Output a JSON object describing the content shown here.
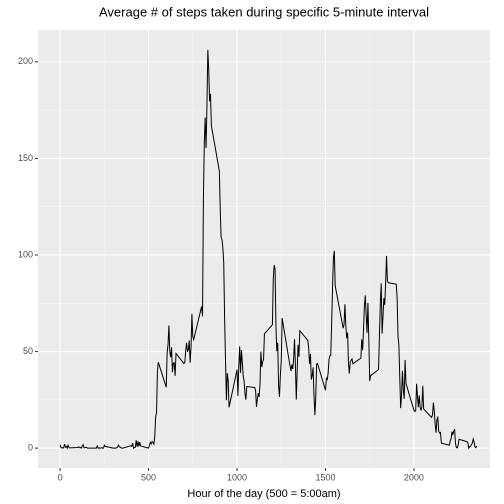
{
  "chart_data": {
    "type": "line",
    "title": "Average # of steps taken during specific 5-minute interval",
    "x_label": "Hour of the day (500 = 5:00am)",
    "x": [
      0,
      5,
      10,
      15,
      20,
      25,
      30,
      35,
      40,
      45,
      50,
      55,
      100,
      105,
      110,
      115,
      120,
      125,
      130,
      135,
      140,
      145,
      150,
      155,
      200,
      205,
      210,
      215,
      220,
      225,
      230,
      235,
      240,
      245,
      250,
      255,
      300,
      305,
      310,
      315,
      320,
      325,
      330,
      335,
      340,
      345,
      350,
      355,
      400,
      405,
      410,
      415,
      420,
      425,
      430,
      435,
      440,
      445,
      450,
      455,
      500,
      505,
      510,
      515,
      520,
      525,
      530,
      535,
      540,
      545,
      550,
      555,
      600,
      605,
      610,
      615,
      620,
      625,
      630,
      635,
      640,
      645,
      650,
      655,
      700,
      705,
      710,
      715,
      720,
      725,
      730,
      735,
      740,
      745,
      750,
      755,
      800,
      805,
      810,
      815,
      820,
      825,
      830,
      835,
      840,
      845,
      850,
      855,
      900,
      905,
      910,
      915,
      920,
      925,
      930,
      935,
      940,
      945,
      950,
      955,
      1000,
      1005,
      1010,
      1015,
      1020,
      1025,
      1030,
      1035,
      1040,
      1045,
      1050,
      1055,
      1100,
      1105,
      1110,
      1115,
      1120,
      1125,
      1130,
      1135,
      1140,
      1145,
      1150,
      1155,
      1200,
      1205,
      1210,
      1215,
      1220,
      1225,
      1230,
      1235,
      1240,
      1245,
      1250,
      1255,
      1300,
      1305,
      1310,
      1315,
      1320,
      1325,
      1330,
      1335,
      1340,
      1345,
      1350,
      1355,
      1400,
      1405,
      1410,
      1415,
      1420,
      1425,
      1430,
      1435,
      1440,
      1445,
      1450,
      1455,
      1500,
      1505,
      1510,
      1515,
      1520,
      1525,
      1530,
      1535,
      1540,
      1545,
      1550,
      1555,
      1600,
      1605,
      1610,
      1615,
      1620,
      1625,
      1630,
      1635,
      1640,
      1645,
      1650,
      1655,
      1700,
      1705,
      1710,
      1715,
      1720,
      1725,
      1730,
      1735,
      1740,
      1745,
      1750,
      1755,
      1800,
      1805,
      1810,
      1815,
      1820,
      1825,
      1830,
      1835,
      1840,
      1845,
      1850,
      1855,
      1900,
      1905,
      1910,
      1915,
      1920,
      1925,
      1930,
      1935,
      1940,
      1945,
      1950,
      1955,
      2000,
      2005,
      2010,
      2015,
      2020,
      2025,
      2030,
      2035,
      2040,
      2045,
      2050,
      2055,
      2100,
      2105,
      2110,
      2115,
      2120,
      2125,
      2130,
      2135,
      2140,
      2145,
      2150,
      2155,
      2200,
      2205,
      2210,
      2215,
      2220,
      2225,
      2230,
      2235,
      2240,
      2245,
      2250,
      2255,
      2300,
      2305,
      2310,
      2315,
      2320,
      2325,
      2330,
      2335,
      2340,
      2345,
      2350,
      2355
    ],
    "values": [
      1.7,
      0.3,
      0.1,
      0.2,
      0.1,
      2.1,
      0.5,
      0.9,
      0,
      1.5,
      0.3,
      0.1,
      0.3,
      0.7,
      0.2,
      0.3,
      0,
      1.1,
      1.8,
      0.2,
      0.2,
      0.4,
      0.3,
      0,
      0,
      0,
      1.1,
      0,
      0,
      0.1,
      0,
      0.2,
      0,
      0,
      1.5,
      0.9,
      0,
      0,
      0,
      0,
      0.2,
      0.6,
      1.6,
      0.6,
      0.5,
      0.1,
      0,
      0,
      1.2,
      0.9,
      2.6,
      0,
      0.3,
      0.4,
      4.1,
      0.7,
      3.5,
      0.8,
      3.1,
      1.1,
      0,
      1.6,
      3,
      2.2,
      3.3,
      3,
      2.1,
      6.1,
      16,
      18.3,
      39.5,
      44.5,
      31.5,
      49.3,
      53.8,
      63.5,
      50,
      47.1,
      52.2,
      39.3,
      44,
      44.2,
      37.4,
      49,
      43.8,
      44.4,
      50.5,
      54.5,
      49.9,
      51,
      55.7,
      44.3,
      52.3,
      69.5,
      57.8,
      56.2,
      73.4,
      68.2,
      129.4,
      157.5,
      171.2,
      155.4,
      177.3,
      206.2,
      195.9,
      179.6,
      183.4,
      167,
      143.5,
      124,
      109.1,
      108.1,
      103.7,
      95.9,
      66.2,
      45.2,
      24.8,
      38.8,
      35,
      21.1,
      40.6,
      27,
      42.4,
      52.7,
      38.9,
      50.8,
      44.3,
      37.4,
      34.7,
      28.3,
      25.1,
      31.9,
      31.4,
      29.7,
      21.3,
      25.5,
      28.4,
      26.5,
      33.4,
      50,
      42,
      44.6,
      46,
      59.2,
      63.9,
      87.7,
      94.8,
      92.8,
      63.4,
      50.2,
      54.5,
      32.4,
      26.5,
      37.7,
      45.1,
      67.3,
      42.3,
      39.9,
      43.3,
      41,
      46.2,
      56.4,
      42.8,
      25.1,
      40,
      53.5,
      47.3,
      60.8,
      55.8,
      52,
      43.6,
      48.7,
      35.5,
      37.5,
      41.8,
      27.5,
      17.1,
      26.1,
      43.6,
      43.8,
      30,
      36.1,
      35.5,
      38.8,
      46,
      47.8,
      48.1,
      65.3,
      82.9,
      98.7,
      102.1,
      84,
      62.1,
      64.1,
      74.5,
      63.2,
      56.9,
      59.8,
      43.9,
      38.6,
      44.7,
      45.5,
      46.2,
      43.7,
      46.6,
      56.3,
      50.7,
      61.2,
      73.4,
      79.1,
      68.9,
      59.7,
      75.1,
      56.5,
      34.8,
      37.5,
      40.7,
      58,
      74.7,
      85.3,
      59.3,
      67.8,
      77.7,
      74.2,
      85.3,
      99.5,
      86.6,
      85.6,
      84.9,
      77.8,
      58,
      53.4,
      36.3,
      20.7,
      27.4,
      40,
      30.2,
      25.5,
      45.7,
      33.5,
      19.6,
      19,
      19.3,
      33.3,
      26.8,
      21.2,
      27.3,
      21.3,
      19.5,
      21.3,
      32.3,
      20.2,
      15.9,
      17.2,
      23.5,
      19.2,
      12.5,
      8,
      14.7,
      16.3,
      8.7,
      7.8,
      8.1,
      2.6,
      1.5,
      3.7,
      4.8,
      8.5,
      7.1,
      8.7,
      9.8,
      2.2,
      0.3,
      0.1,
      1.6,
      4.6,
      3.3,
      2.8,
      0,
      0.8,
      1,
      1.6,
      2.6,
      4.7,
      3.3,
      0.6,
      0.2,
      1.1
    ],
    "color": "#000000",
    "xlim": [
      -125,
      2430
    ],
    "ylim": [
      -10.3,
      216.5
    ],
    "xticks": [
      0,
      500,
      1000,
      1500,
      2000
    ],
    "yticks": [
      0,
      50,
      100,
      150,
      200
    ],
    "grid": true
  }
}
